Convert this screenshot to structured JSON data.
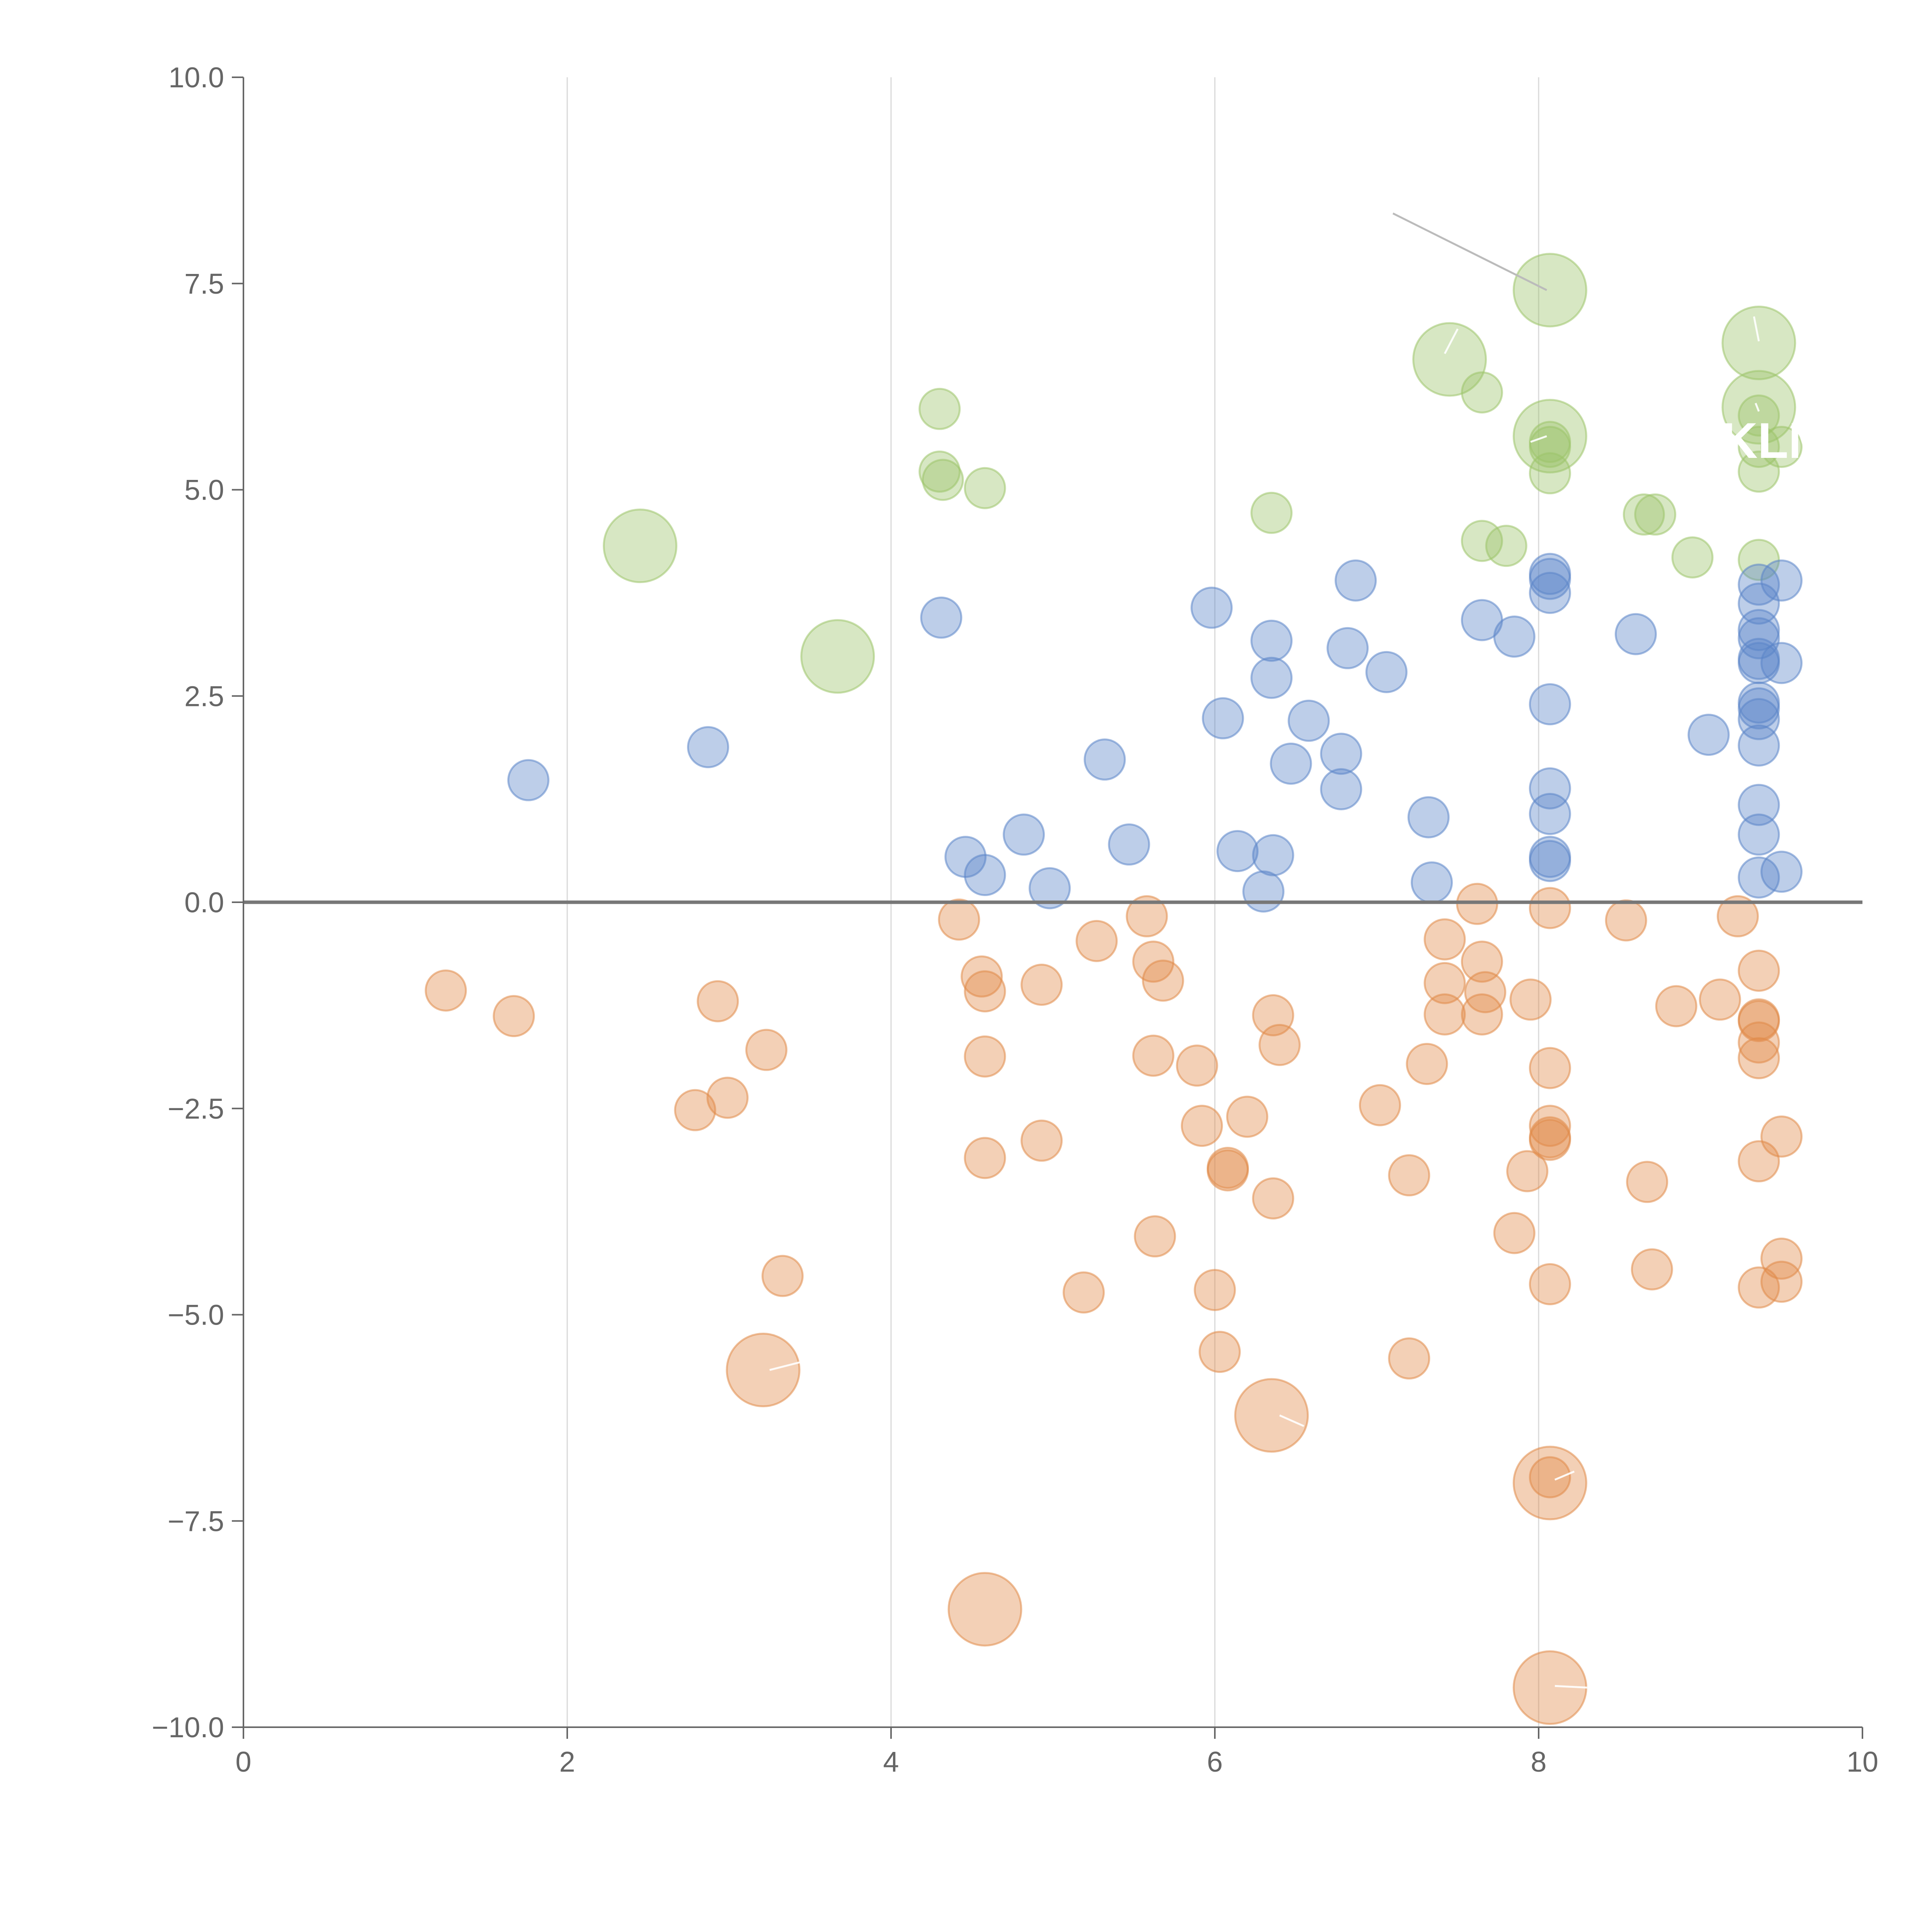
{
  "chart_data": {
    "type": "scatter",
    "title": "",
    "xlabel": "",
    "ylabel": "",
    "xlim": [
      0,
      10
    ],
    "ylim": [
      -10,
      10
    ],
    "grid": "vertical",
    "legend": "none",
    "x_ticks": [
      "0",
      "2",
      "4",
      "6",
      "8",
      "10"
    ],
    "y_ticks": [
      "−10.0",
      "−7.5",
      "−5.0",
      "−2.5",
      "0.0",
      "2.5",
      "5.0",
      "7.5",
      "10.0"
    ],
    "annotation_text": "KLM",
    "colors": {
      "green": "#9cc46a",
      "blue": "#5b85c8",
      "orange": "#e08a48",
      "axis": "#666666"
    },
    "series": [
      {
        "name": "green",
        "color": "#9cc46a",
        "points": [
          [
            2.45,
            4.32,
            2
          ],
          [
            3.67,
            2.98,
            2
          ],
          [
            4.3,
            5.98,
            1
          ],
          [
            4.3,
            5.22,
            1
          ],
          [
            4.32,
            5.12,
            1
          ],
          [
            4.58,
            5.02,
            1
          ],
          [
            6.35,
            4.72,
            1
          ],
          [
            7.45,
            6.58,
            2
          ],
          [
            7.65,
            6.18,
            1
          ],
          [
            7.65,
            4.38,
            1
          ],
          [
            7.8,
            4.32,
            1
          ],
          [
            8.07,
            7.42,
            2
          ],
          [
            8.07,
            5.65,
            2
          ],
          [
            8.07,
            5.58,
            1
          ],
          [
            8.07,
            5.52,
            1
          ],
          [
            8.07,
            5.2,
            1
          ],
          [
            8.65,
            4.7,
            1
          ],
          [
            8.72,
            4.7,
            1
          ],
          [
            8.95,
            4.18,
            1
          ],
          [
            9.36,
            6.78,
            2
          ],
          [
            9.36,
            6.0,
            2
          ],
          [
            9.36,
            5.9,
            1
          ],
          [
            9.36,
            5.52,
            1
          ],
          [
            9.36,
            5.22,
            1
          ],
          [
            9.36,
            4.15,
            1
          ],
          [
            9.5,
            5.52,
            1
          ]
        ]
      },
      {
        "name": "blue",
        "color": "#5b85c8",
        "points": [
          [
            1.76,
            1.48,
            1
          ],
          [
            2.87,
            1.88,
            1
          ],
          [
            4.31,
            3.45,
            1
          ],
          [
            4.46,
            0.55,
            1
          ],
          [
            4.58,
            0.33,
            1
          ],
          [
            4.82,
            0.82,
            1
          ],
          [
            4.98,
            0.17,
            1
          ],
          [
            5.32,
            1.73,
            1
          ],
          [
            5.47,
            0.7,
            1
          ],
          [
            5.98,
            3.57,
            1
          ],
          [
            6.05,
            2.23,
            1
          ],
          [
            6.14,
            0.62,
            1
          ],
          [
            6.3,
            0.13,
            1
          ],
          [
            6.35,
            3.17,
            1
          ],
          [
            6.35,
            2.72,
            1
          ],
          [
            6.36,
            0.57,
            1
          ],
          [
            6.47,
            1.68,
            1
          ],
          [
            6.58,
            2.2,
            1
          ],
          [
            6.78,
            1.8,
            1
          ],
          [
            6.78,
            1.37,
            1
          ],
          [
            6.82,
            3.08,
            1
          ],
          [
            6.87,
            3.9,
            1
          ],
          [
            7.06,
            2.79,
            1
          ],
          [
            7.32,
            1.03,
            1
          ],
          [
            7.34,
            0.24,
            1
          ],
          [
            7.65,
            3.42,
            1
          ],
          [
            7.85,
            3.22,
            1
          ],
          [
            8.07,
            3.98,
            1
          ],
          [
            8.07,
            3.92,
            1
          ],
          [
            8.07,
            3.75,
            1
          ],
          [
            8.07,
            2.4,
            1
          ],
          [
            8.07,
            1.38,
            1
          ],
          [
            8.07,
            1.07,
            1
          ],
          [
            8.07,
            0.55,
            1
          ],
          [
            8.07,
            0.5,
            1
          ],
          [
            8.6,
            3.25,
            1
          ],
          [
            9.05,
            2.03,
            1
          ],
          [
            9.36,
            3.85,
            1
          ],
          [
            9.36,
            3.62,
            1
          ],
          [
            9.36,
            3.3,
            1
          ],
          [
            9.36,
            3.2,
            1
          ],
          [
            9.36,
            2.95,
            1
          ],
          [
            9.36,
            2.9,
            1
          ],
          [
            9.36,
            2.42,
            1
          ],
          [
            9.36,
            2.35,
            1
          ],
          [
            9.36,
            2.22,
            1
          ],
          [
            9.36,
            1.9,
            1
          ],
          [
            9.36,
            1.18,
            1
          ],
          [
            9.36,
            0.82,
            1
          ],
          [
            9.36,
            0.3,
            1
          ],
          [
            9.5,
            3.9,
            1
          ],
          [
            9.5,
            2.9,
            1
          ],
          [
            9.5,
            0.37,
            1
          ]
        ]
      },
      {
        "name": "orange",
        "color": "#e08a48",
        "points": [
          [
            1.25,
            -1.07,
            1
          ],
          [
            1.67,
            -1.38,
            1
          ],
          [
            2.79,
            -2.52,
            1
          ],
          [
            2.93,
            -1.2,
            1
          ],
          [
            2.99,
            -2.37,
            1
          ],
          [
            3.21,
            -5.67,
            2
          ],
          [
            3.23,
            -1.79,
            1
          ],
          [
            3.33,
            -4.53,
            1
          ],
          [
            4.42,
            -0.21,
            1
          ],
          [
            4.56,
            -0.9,
            1
          ],
          [
            4.58,
            -1.08,
            1
          ],
          [
            4.58,
            -1.87,
            1
          ],
          [
            4.58,
            -3.1,
            1
          ],
          [
            4.58,
            -8.57,
            2
          ],
          [
            4.93,
            -1.0,
            1
          ],
          [
            4.93,
            -2.89,
            1
          ],
          [
            5.19,
            -4.73,
            1
          ],
          [
            5.27,
            -0.47,
            1
          ],
          [
            5.58,
            -0.17,
            1
          ],
          [
            5.62,
            -0.72,
            1
          ],
          [
            5.62,
            -1.86,
            1
          ],
          [
            5.63,
            -4.05,
            1
          ],
          [
            5.68,
            -0.95,
            1
          ],
          [
            5.89,
            -1.98,
            1
          ],
          [
            5.92,
            -2.71,
            1
          ],
          [
            6.0,
            -4.7,
            1
          ],
          [
            6.03,
            -5.45,
            1
          ],
          [
            6.08,
            -3.22,
            1
          ],
          [
            6.08,
            -3.25,
            1
          ],
          [
            6.2,
            -2.6,
            1
          ],
          [
            6.36,
            -1.37,
            1
          ],
          [
            6.36,
            -3.59,
            1
          ],
          [
            6.35,
            -6.22,
            2
          ],
          [
            6.4,
            -1.73,
            1
          ],
          [
            7.02,
            -2.46,
            1
          ],
          [
            7.2,
            -3.31,
            1
          ],
          [
            7.2,
            -5.53,
            1
          ],
          [
            7.31,
            -1.96,
            1
          ],
          [
            7.42,
            -0.45,
            1
          ],
          [
            7.42,
            -0.98,
            1
          ],
          [
            7.42,
            -1.36,
            1
          ],
          [
            7.62,
            -0.02,
            1
          ],
          [
            7.65,
            -0.72,
            1
          ],
          [
            7.65,
            -1.36,
            1
          ],
          [
            7.67,
            -1.09,
            1
          ],
          [
            7.85,
            -4.01,
            1
          ],
          [
            7.93,
            -3.26,
            1
          ],
          [
            7.95,
            -1.18,
            1
          ],
          [
            8.07,
            -0.07,
            1
          ],
          [
            8.07,
            -2.01,
            1
          ],
          [
            8.07,
            -2.71,
            1
          ],
          [
            8.07,
            -2.85,
            1
          ],
          [
            8.07,
            -2.88,
            1
          ],
          [
            8.07,
            -4.63,
            1
          ],
          [
            8.07,
            -6.97,
            1
          ],
          [
            8.07,
            -7.04,
            2
          ],
          [
            8.07,
            -9.52,
            2
          ],
          [
            8.54,
            -0.22,
            1
          ],
          [
            8.67,
            -3.39,
            1
          ],
          [
            8.7,
            -4.45,
            1
          ],
          [
            8.85,
            -1.26,
            1
          ],
          [
            9.12,
            -1.18,
            1
          ],
          [
            9.23,
            -0.17,
            1
          ],
          [
            9.36,
            -0.83,
            1
          ],
          [
            9.36,
            -1.42,
            1
          ],
          [
            9.36,
            -1.44,
            1
          ],
          [
            9.36,
            -1.7,
            1
          ],
          [
            9.36,
            -1.89,
            1
          ],
          [
            9.36,
            -3.14,
            1
          ],
          [
            9.36,
            -4.67,
            1
          ],
          [
            9.5,
            -2.84,
            1
          ],
          [
            9.5,
            -4.32,
            1
          ],
          [
            9.5,
            -4.6,
            1
          ]
        ]
      }
    ]
  }
}
